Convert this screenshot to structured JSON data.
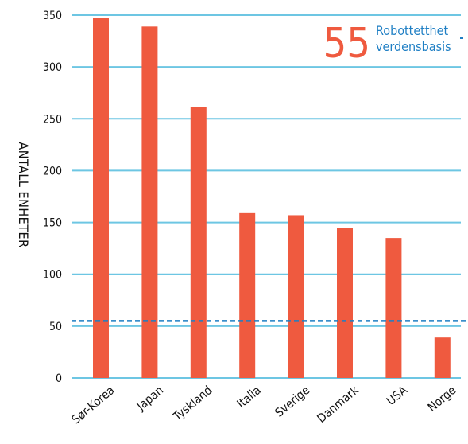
{
  "chart_data": {
    "type": "bar",
    "title": "",
    "xlabel": "",
    "ylabel": "ANTALL ENHETER",
    "categories": [
      "Sør-Korea",
      "Japan",
      "Tyskland",
      "Italia",
      "Sverige",
      "Danmark",
      "USA",
      "Norge"
    ],
    "values": [
      347,
      339,
      261,
      159,
      157,
      145,
      135,
      39
    ],
    "ylim": [
      0,
      350
    ],
    "yticks": [
      "0",
      "50",
      "100",
      "150",
      "200",
      "250",
      "300",
      "350"
    ],
    "grid": true,
    "reference_line": {
      "value": 55,
      "number_label": "55",
      "text_lines": [
        "Robottetthet",
        "verdensbasis"
      ]
    },
    "colors": {
      "bar": "#ef5a3f",
      "grid": "#6dc6e3",
      "reference_line": "#1f7fc4",
      "reference_number": "#ef5a3f",
      "reference_text": "#1f7fc4"
    }
  }
}
